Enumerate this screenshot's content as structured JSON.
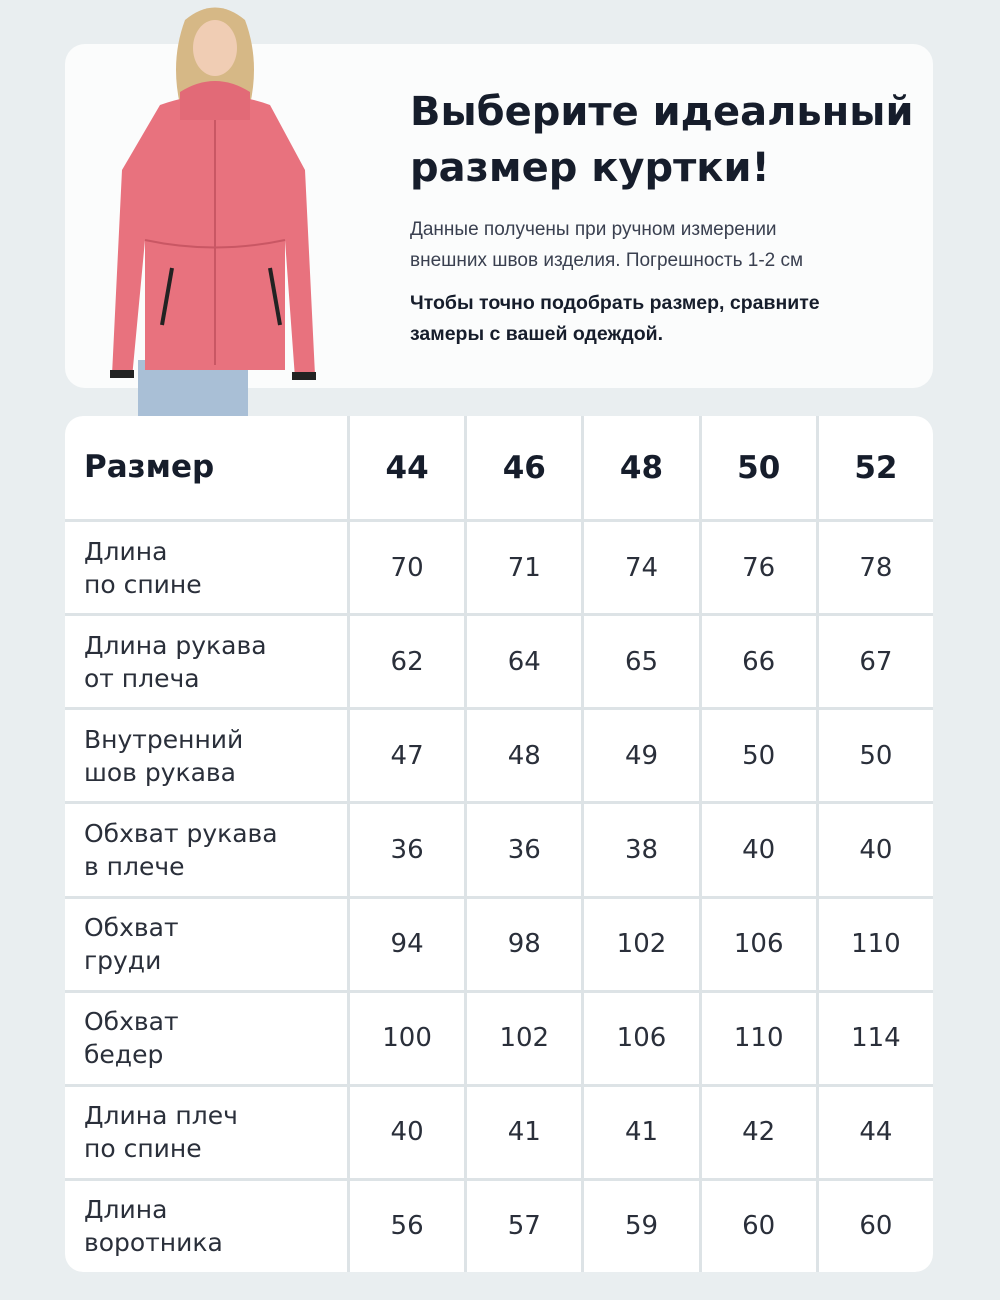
{
  "header": {
    "title_line1": "Выберите идеальный",
    "title_line2": "размер куртки!",
    "description_line1": "Данные получены при ручном измерении",
    "description_line2": "внешних швов изделия. Погрешность 1-2 см",
    "note_line1": "Чтобы точно подобрать размер, сравните",
    "note_line2": "замеры с вашей одеждой."
  },
  "colors": {
    "background": "#e9eef0",
    "card": "#ffffff",
    "jacket": "#e8727e",
    "text": "#161d2b"
  },
  "table": {
    "header_label": "Размер",
    "sizes": [
      "44",
      "46",
      "48",
      "50",
      "52"
    ],
    "rows": [
      {
        "label": "Длина\nпо спине",
        "values": [
          "70",
          "71",
          "74",
          "76",
          "78"
        ]
      },
      {
        "label": "Длина рукава\nот плеча",
        "values": [
          "62",
          "64",
          "65",
          "66",
          "67"
        ]
      },
      {
        "label": "Внутренний\nшов рукава",
        "values": [
          "47",
          "48",
          "49",
          "50",
          "50"
        ]
      },
      {
        "label": "Обхват рукава\nв плече",
        "values": [
          "36",
          "36",
          "38",
          "40",
          "40"
        ]
      },
      {
        "label": "Обхват\nгруди",
        "values": [
          "94",
          "98",
          "102",
          "106",
          "110"
        ]
      },
      {
        "label": "Обхват\nбедер",
        "values": [
          "100",
          "102",
          "106",
          "110",
          "114"
        ]
      },
      {
        "label": "Длина плеч\nпо спине",
        "values": [
          "40",
          "41",
          "41",
          "42",
          "44"
        ]
      },
      {
        "label": "Длина\nворотника",
        "values": [
          "56",
          "57",
          "59",
          "60",
          "60"
        ]
      }
    ]
  }
}
